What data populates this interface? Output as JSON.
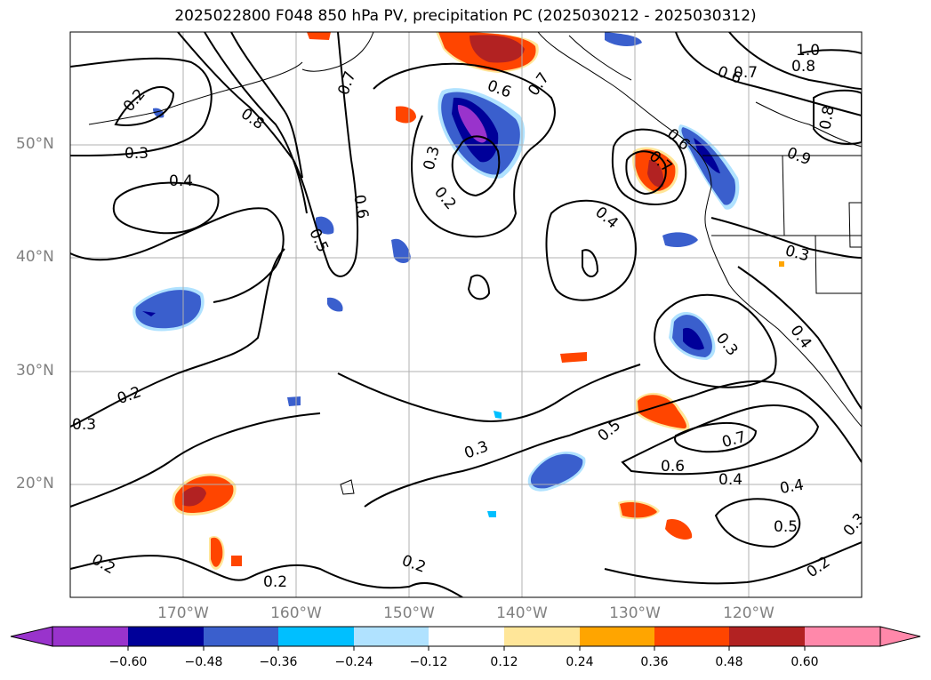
{
  "title": "2025022800 F048 850 hPa PV, precipitation PC (2025030212 - 2025030312)",
  "map": {
    "projection": "lat-lon",
    "lat_labels": [
      "50°N",
      "40°N",
      "30°N",
      "20°N"
    ],
    "lon_labels": [
      "170°W",
      "160°W",
      "150°W",
      "140°W",
      "130°W",
      "120°W"
    ],
    "gridline_color": "#b0b0b0",
    "label_color": "#808080"
  },
  "pv_contour_labels": [
    "0.2",
    "0.3",
    "0.4",
    "0.5",
    "0.6",
    "0.7",
    "0.8",
    "1.0",
    "0.9"
  ],
  "colorbar": {
    "ticks": [
      "−0.60",
      "−0.48",
      "−0.36",
      "−0.24",
      "−0.12",
      "0.12",
      "0.24",
      "0.36",
      "0.48",
      "0.60"
    ],
    "colors": [
      "#9933cc",
      "#000099",
      "#3a5fcd",
      "#00bfff",
      "#b0e2ff",
      "#ffffff",
      "#ffe699",
      "#ffa500",
      "#ff4500",
      "#b22222",
      "#ff88aa"
    ]
  }
}
